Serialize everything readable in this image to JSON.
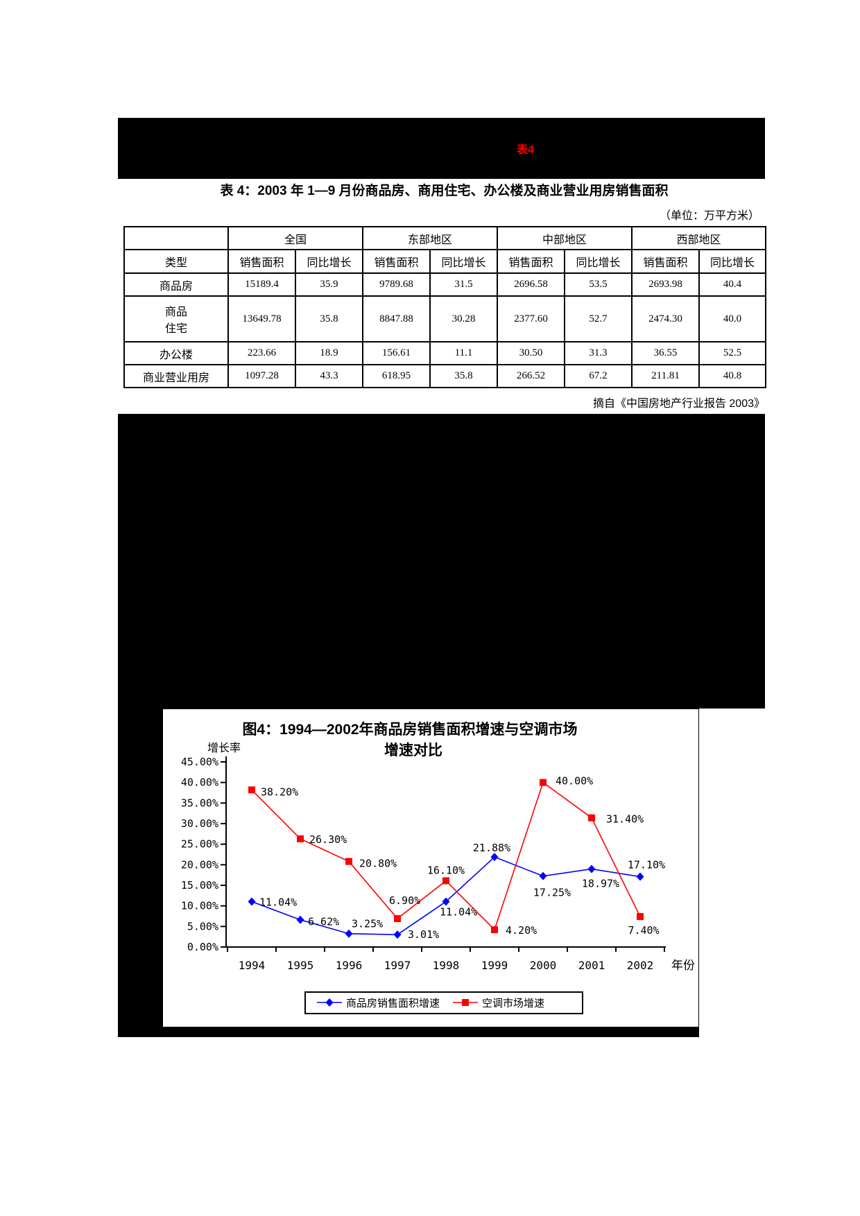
{
  "banner": {
    "label": "表4",
    "label_color": "#ff0000",
    "background": "#000000"
  },
  "table_section": {
    "title": "表 4：2003 年 1—9 月份商品房、商用住宅、办公楼及商业营业用房销售面积",
    "unit_note": "（单位：万平方米）",
    "corner_header": "",
    "type_header": "类型",
    "regions": [
      "全国",
      "东部地区",
      "中部地区",
      "西部地区"
    ],
    "sub_headers": [
      "销售面积",
      "同比增长"
    ],
    "rows": [
      {
        "type": "商品房",
        "values": [
          "15189.4",
          "35.9",
          "9789.68",
          "31.5",
          "2696.58",
          "53.5",
          "2693.98",
          "40.4"
        ]
      },
      {
        "type": "商品\n住宅",
        "values": [
          "13649.78",
          "35.8",
          "8847.88",
          "30.28",
          "2377.60",
          "52.7",
          "2474.30",
          "40.0"
        ]
      },
      {
        "type": "办公楼",
        "values": [
          "223.66",
          "18.9",
          "156.61",
          "11.1",
          "30.50",
          "31.3",
          "36.55",
          "52.5"
        ]
      },
      {
        "type": "商业营业用房",
        "values": [
          "1097.28",
          "43.3",
          "618.95",
          "35.8",
          "266.52",
          "67.2",
          "211.81",
          "40.8"
        ]
      }
    ],
    "source_note": "摘自《中国房地产行业报告 2003》"
  },
  "chart_data": {
    "type": "line",
    "title_lines": [
      "图4：1994—2002年商品房销售面积增速与空调市场",
      "增速对比"
    ],
    "ylabel": "增长率",
    "xlabel": "年份",
    "categories": [
      "1994",
      "1995",
      "1996",
      "1997",
      "1998",
      "1999",
      "2000",
      "2001",
      "2002"
    ],
    "ylim": [
      0,
      45
    ],
    "ytick_step": 5,
    "ytick_labels": [
      "45.00%",
      "40.00%",
      "35.00%",
      "30.00%",
      "25.00%",
      "20.00%",
      "15.00%",
      "10.00%",
      "5.00%",
      "0.00%"
    ],
    "grid": false,
    "legend_position": "bottom",
    "series": [
      {
        "name": "商品房销售面积增速",
        "color": "#0000ff",
        "marker": "diamond",
        "values": [
          11.04,
          6.62,
          3.25,
          3.01,
          11.04,
          21.88,
          17.25,
          18.97,
          17.1
        ],
        "labels": [
          "11.04%",
          "6.62%",
          "3.25%",
          "3.01%",
          "11.04%",
          "21.88%",
          "17.25%",
          "18.97%",
          "17.10%"
        ]
      },
      {
        "name": "空调市场增速",
        "color": "#ff0000",
        "marker": "square",
        "values": [
          38.2,
          26.3,
          20.8,
          6.9,
          16.1,
          4.2,
          40.0,
          31.4,
          7.4
        ],
        "labels": [
          "38.20%",
          "26.30%",
          "20.80%",
          "6.90%",
          "16.10%",
          "4.20%",
          "40.00%",
          "31.40%",
          "7.40%"
        ]
      }
    ]
  }
}
